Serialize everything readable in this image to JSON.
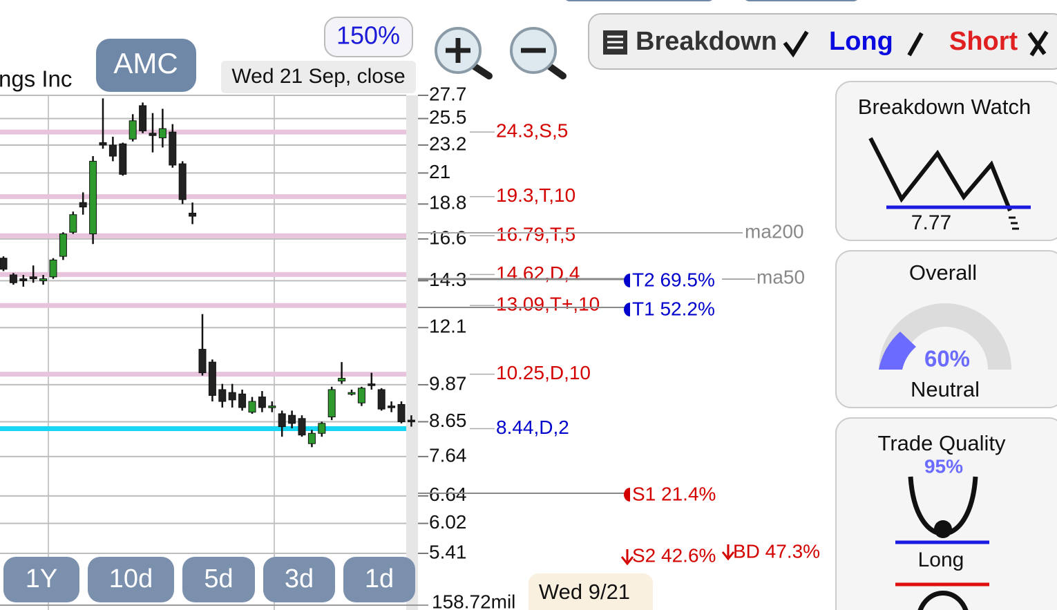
{
  "header": {
    "company": "ngs Inc",
    "ticker": "AMC",
    "zoom": "150%",
    "date": "Wed 21 Sep, close"
  },
  "toolbar": {
    "breakdown": "Breakdown",
    "long": "Long",
    "short": "Short"
  },
  "chart_data": {
    "type": "candlestick",
    "log_scale": true,
    "ylim": [
      5.41,
      27.7
    ],
    "yticks": [
      27.7,
      25.5,
      23.2,
      21,
      18.8,
      16.6,
      14.3,
      12.1,
      9.87,
      8.65,
      7.64,
      6.64,
      6.02,
      5.41
    ],
    "up_color": "#2e9a2e",
    "down_color": "#222222",
    "open": [
      15.5,
      14.6,
      14.4,
      14.5,
      14.3,
      14.5,
      15.6,
      17.0,
      18.9,
      16.9,
      23.4,
      23.2,
      23.3,
      23.7,
      26.7,
      24.2,
      23.8,
      24.3,
      21.7,
      18.2,
      11.2,
      10.7,
      9.7,
      9.6,
      9.55,
      8.95,
      9.45,
      9.1,
      8.9,
      8.85,
      8.75,
      8.0,
      8.3,
      8.8,
      10.0,
      9.55,
      9.25,
      9.9,
      9.7,
      9.15,
      9.2,
      8.7
    ],
    "high": [
      15.6,
      14.7,
      14.6,
      15.1,
      14.6,
      15.5,
      17.0,
      18.3,
      19.6,
      22.3,
      27.4,
      23.9,
      23.4,
      25.9,
      27.0,
      26.0,
      26.4,
      25.0,
      21.9,
      18.9,
      12.7,
      10.8,
      9.9,
      9.9,
      9.7,
      9.45,
      9.65,
      9.3,
      9.0,
      9.0,
      8.85,
      8.4,
      8.65,
      9.8,
      10.7,
      9.7,
      9.8,
      10.3,
      9.75,
      9.3,
      9.3,
      8.85
    ],
    "low": [
      14.8,
      14.1,
      14.0,
      14.2,
      14.1,
      14.4,
      15.4,
      16.9,
      18.1,
      16.3,
      22.9,
      21.9,
      20.8,
      23.5,
      24.2,
      22.6,
      23.0,
      21.4,
      18.8,
      17.5,
      10.2,
      9.3,
      9.1,
      9.1,
      9.0,
      8.9,
      8.95,
      8.95,
      8.2,
      8.45,
      8.2,
      7.9,
      8.2,
      8.7,
      9.9,
      9.5,
      9.15,
      9.7,
      9.0,
      8.95,
      8.6,
      8.5
    ],
    "close": [
      14.9,
      14.2,
      14.3,
      14.4,
      14.4,
      15.4,
      16.9,
      18.1,
      18.6,
      21.9,
      23.2,
      22.3,
      20.9,
      25.3,
      24.4,
      24.0,
      24.6,
      21.6,
      19.1,
      18.0,
      10.3,
      9.5,
      9.3,
      9.35,
      9.1,
      9.3,
      9.1,
      9.15,
      8.5,
      8.6,
      8.25,
      8.3,
      8.6,
      9.7,
      10.1,
      9.6,
      9.75,
      9.85,
      9.05,
      9.1,
      8.65,
      8.7
    ],
    "levels": [
      {
        "value": 24.3,
        "label": "24.3,S,5",
        "color": "#d40000",
        "line_color": "#e8c4dc"
      },
      {
        "value": 19.3,
        "label": "19.3,T,10",
        "color": "#d40000",
        "line_color": "#e8c4dc"
      },
      {
        "value": 16.79,
        "label": "16.79,T,5",
        "color": "#d40000",
        "line_color": "#e8c4dc"
      },
      {
        "value": 14.62,
        "label": "14.62,D,4",
        "color": "#d40000",
        "line_color": "#e8c4dc"
      },
      {
        "value": 13.09,
        "label": "13.09,T+,10",
        "color": "#d40000",
        "line_color": "#e8c4dc"
      },
      {
        "value": 10.25,
        "label": "10.25,D,10",
        "color": "#d40000",
        "line_color": "#e8c4dc"
      },
      {
        "value": 8.44,
        "label": "8.44,D,2",
        "color": "#0000cc",
        "line_color": "#1ad6f5"
      }
    ],
    "ma200": "ma200",
    "ma50": "ma50",
    "targets": {
      "t2": "T2 69.5%",
      "t1": "T1 52.2%",
      "s1": "S1 21.4%",
      "s2": "S2 42.6%",
      "bd": "BD 47.3%"
    }
  },
  "ranges": [
    "1Y",
    "10d",
    "5d",
    "3d",
    "1d"
  ],
  "volume": "158.72mil",
  "cursor_date": "Wed 9/21",
  "panels": {
    "breakdown_watch": {
      "title": "Breakdown Watch",
      "level": "7.77"
    },
    "overall": {
      "title": "Overall",
      "score": "60%",
      "verdict": "Neutral"
    },
    "trade_quality": {
      "title": "Trade Quality",
      "score": "95%",
      "direction": "Long"
    }
  }
}
